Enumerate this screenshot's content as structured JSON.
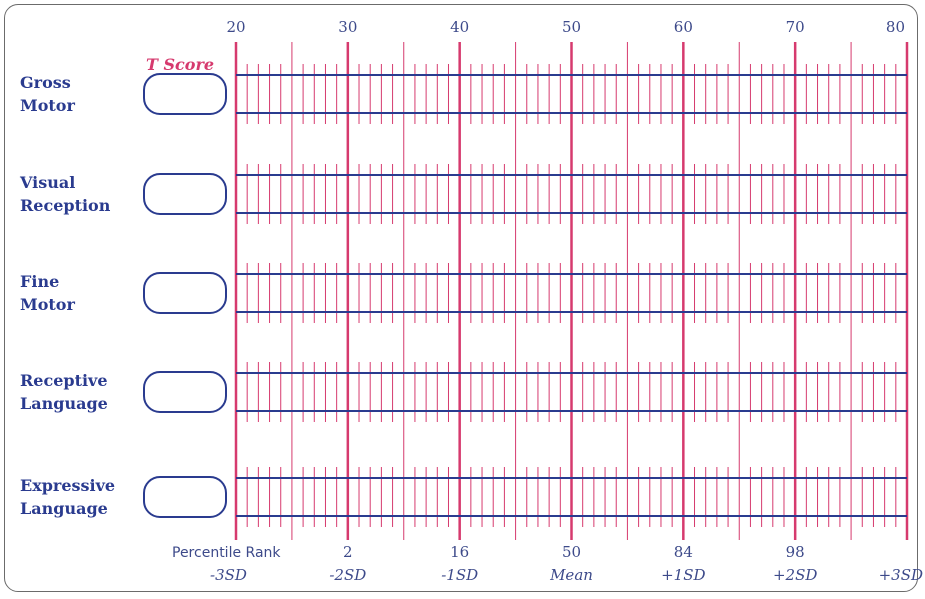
{
  "chart_data": {
    "type": "table",
    "score_axis": {
      "ticks": [
        20,
        30,
        40,
        50,
        60,
        70,
        80
      ],
      "range": [
        20,
        80
      ]
    },
    "tscore_heading": "T Score",
    "domains": [
      {
        "line1": "Gross",
        "line2": "Motor",
        "tscore": ""
      },
      {
        "line1": "Visual",
        "line2": "Reception",
        "tscore": ""
      },
      {
        "line1": "Fine",
        "line2": "Motor",
        "tscore": ""
      },
      {
        "line1": "Receptive",
        "line2": "Language",
        "tscore": ""
      },
      {
        "line1": "Expressive",
        "line2": "Language",
        "tscore": ""
      }
    ],
    "percentile_heading": "Percentile Rank",
    "percentile_marks": [
      {
        "score": 30,
        "percentile": "2",
        "sd": "-2SD"
      },
      {
        "score": 40,
        "percentile": "16",
        "sd": "-1SD"
      },
      {
        "score": 50,
        "percentile": "50",
        "sd": "Mean"
      },
      {
        "score": 60,
        "percentile": "84",
        "sd": "+1SD"
      },
      {
        "score": 70,
        "percentile": "98",
        "sd": "+2SD"
      },
      {
        "score": 80,
        "percentile": "",
        "sd": "+3SD"
      }
    ],
    "sd_start": "-3SD"
  },
  "colors": {
    "pink": "#d63a6e",
    "blue": "#2a3b8f",
    "frame": "#6b6b6b"
  }
}
